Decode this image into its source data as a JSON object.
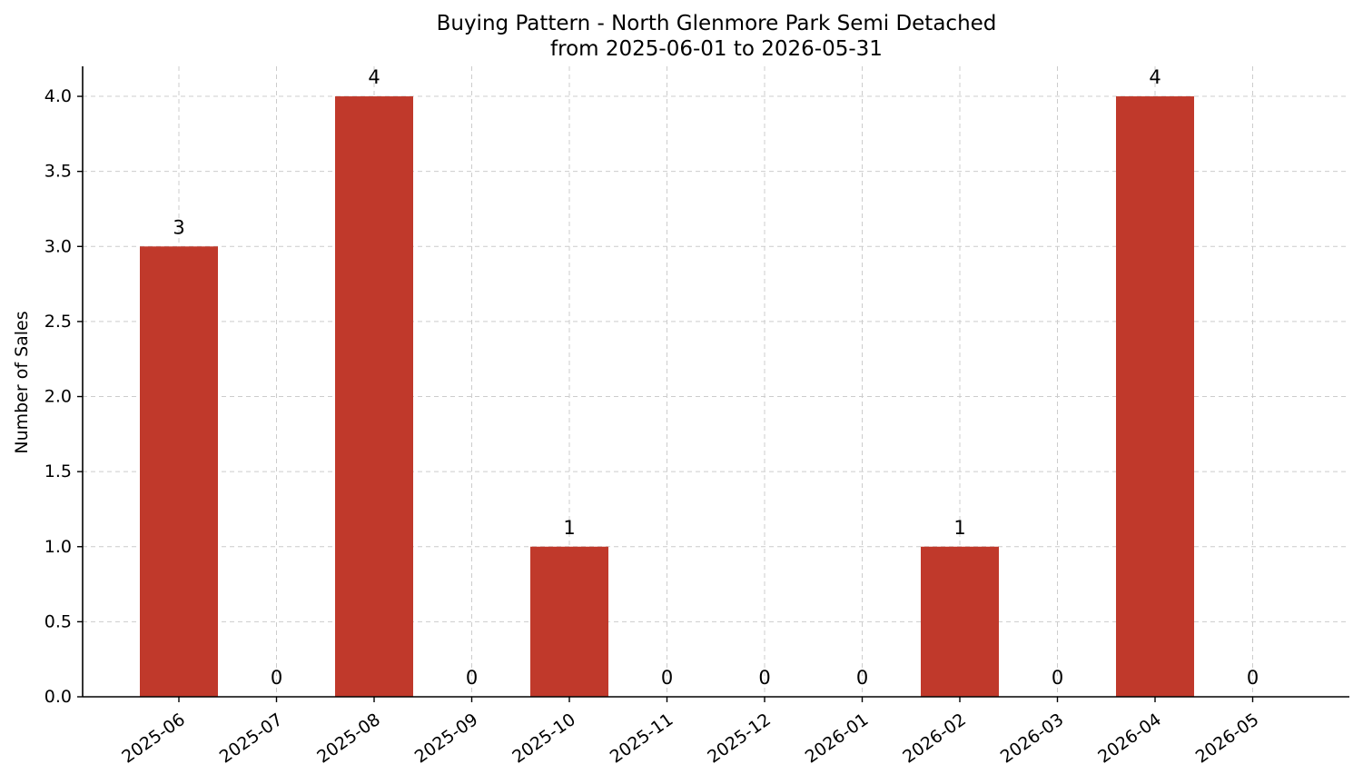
{
  "chart_data": {
    "type": "bar",
    "title_line1": "Buying Pattern - North Glenmore Park Semi Detached",
    "title_line2": "from 2025-06-01 to 2026-05-31",
    "ylabel": "Number of Sales",
    "xlabel": "",
    "categories": [
      "2025-06",
      "2025-07",
      "2025-08",
      "2025-09",
      "2025-10",
      "2025-11",
      "2025-12",
      "2026-01",
      "2026-02",
      "2026-03",
      "2026-04",
      "2026-05"
    ],
    "values": [
      3,
      0,
      4,
      0,
      1,
      0,
      0,
      0,
      1,
      0,
      4,
      0
    ],
    "data_labels": [
      "3",
      "0",
      "4",
      "0",
      "1",
      "0",
      "0",
      "0",
      "1",
      "0",
      "4",
      "0"
    ],
    "ylim": [
      0,
      4.2
    ],
    "yticks": [
      0.0,
      0.5,
      1.0,
      1.5,
      2.0,
      2.5,
      3.0,
      3.5,
      4.0
    ],
    "ytick_labels": [
      "0.0",
      "0.5",
      "1.0",
      "1.5",
      "2.0",
      "2.5",
      "3.0",
      "3.5",
      "4.0"
    ],
    "grid": true,
    "bar_color": "#c0392b"
  }
}
